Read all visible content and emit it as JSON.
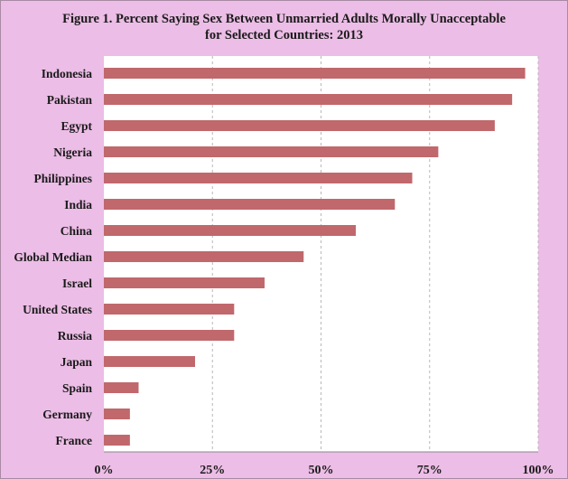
{
  "title": {
    "line1": "Figure 1. Percent Saying Sex Between Unmarried Adults Morally Unacceptable",
    "line2": "for Selected Countries: 2013"
  },
  "colors": {
    "background": "#ecbde6",
    "plot_area": "#ffffff",
    "bar": "#c0686c",
    "gridline": "#b8b8b8"
  },
  "chart_data": {
    "type": "bar",
    "orientation": "horizontal",
    "categories": [
      "Indonesia",
      "Pakistan",
      "Egypt",
      "Nigeria",
      "Philippines",
      "India",
      "China",
      "Global Median",
      "Israel",
      "United States",
      "Russia",
      "Japan",
      "Spain",
      "Germany",
      "France"
    ],
    "values": [
      97,
      94,
      90,
      77,
      71,
      67,
      58,
      46,
      37,
      30,
      30,
      21,
      8,
      6,
      6
    ],
    "xlim": [
      0,
      100
    ],
    "x_ticks": [
      0,
      25,
      50,
      75,
      100
    ],
    "x_tick_labels": [
      "0%",
      "25%",
      "50%",
      "75%",
      "100%"
    ],
    "grid": "vertical-dashed",
    "legend": "none"
  }
}
